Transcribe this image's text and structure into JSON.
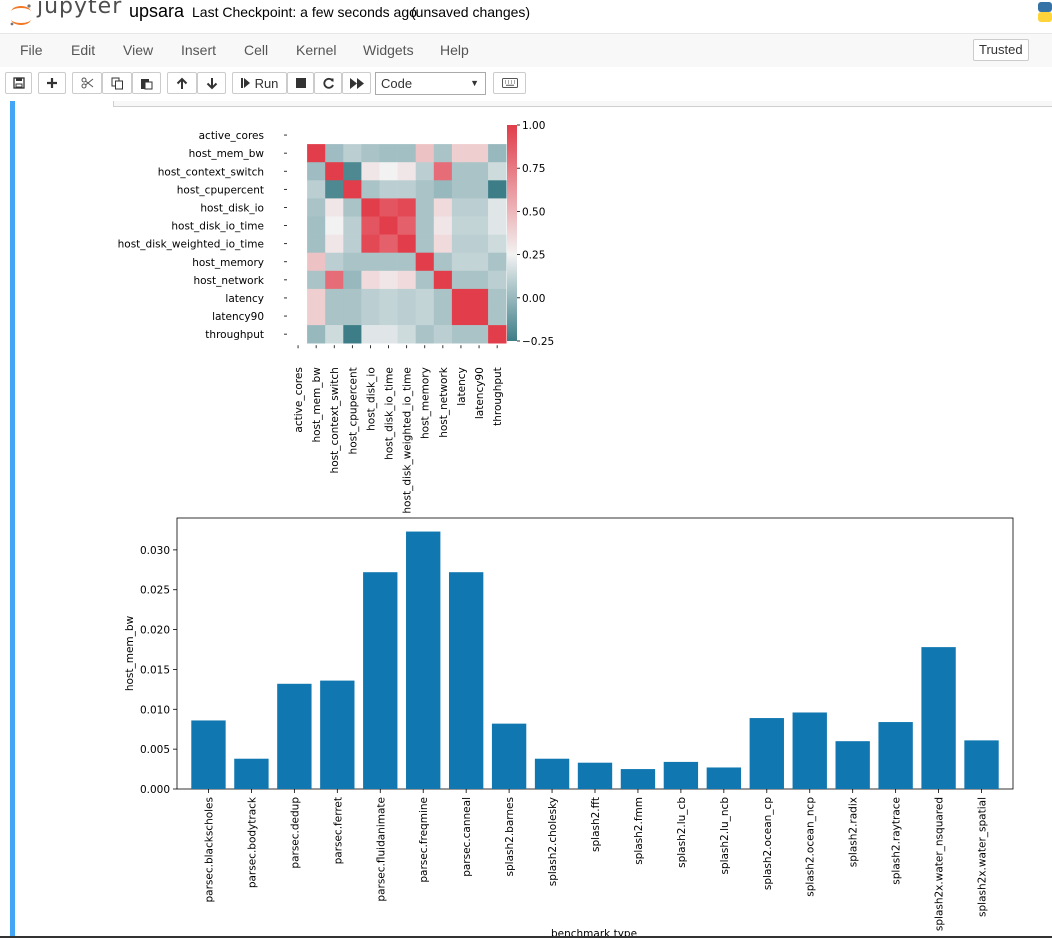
{
  "header": {
    "logo_text": "jupyter",
    "notebook_name": "upsara",
    "checkpoint": "Last Checkpoint: a few seconds ago",
    "status": "(unsaved changes)"
  },
  "menu": {
    "items": [
      "File",
      "Edit",
      "View",
      "Insert",
      "Cell",
      "Kernel",
      "Widgets",
      "Help"
    ],
    "trusted": "Trusted"
  },
  "toolbar": {
    "run_label": "Run",
    "cell_type": "Code"
  },
  "chart_data": [
    {
      "type": "heatmap",
      "rows": [
        "active_cores",
        "host_mem_bw",
        "host_context_switch",
        "host_cpupercent",
        "host_disk_io",
        "host_disk_io_time",
        "host_disk_weighted_io_time",
        "host_memory",
        "host_network",
        "latency",
        "latency90",
        "throughput"
      ],
      "columns": [
        "active_cores",
        "host_mem_bw",
        "host_context_switch",
        "host_cpupercent",
        "host_disk_io",
        "host_disk_io_time",
        "host_disk_weighted_io_time",
        "host_memory",
        "host_network",
        "latency",
        "latency90",
        "throughput"
      ],
      "values": [
        [
          null,
          null,
          null,
          null,
          null,
          null,
          null,
          null,
          null,
          null,
          null,
          null
        ],
        [
          null,
          1.0,
          0.02,
          0.1,
          0.05,
          0.03,
          0.03,
          0.45,
          0.05,
          0.4,
          0.4,
          0.0
        ],
        [
          null,
          0.02,
          1.0,
          -0.2,
          0.3,
          0.25,
          0.3,
          0.1,
          0.8,
          0.05,
          0.05,
          0.15
        ],
        [
          null,
          0.1,
          -0.2,
          1.0,
          0.05,
          0.1,
          0.1,
          0.05,
          0.0,
          0.05,
          0.05,
          -0.25
        ],
        [
          null,
          0.05,
          0.3,
          0.05,
          1.0,
          0.9,
          0.95,
          0.05,
          0.35,
          0.1,
          0.1,
          0.2
        ],
        [
          null,
          0.03,
          0.25,
          0.1,
          0.9,
          1.0,
          0.85,
          0.05,
          0.3,
          0.12,
          0.12,
          0.2
        ],
        [
          null,
          0.03,
          0.3,
          0.1,
          0.95,
          0.85,
          1.0,
          0.05,
          0.35,
          0.1,
          0.1,
          0.15
        ],
        [
          null,
          0.45,
          0.1,
          0.05,
          0.05,
          0.05,
          0.05,
          1.0,
          0.05,
          0.12,
          0.12,
          0.05
        ],
        [
          null,
          0.05,
          0.8,
          0.0,
          0.35,
          0.3,
          0.35,
          0.05,
          1.0,
          0.05,
          0.05,
          0.1
        ],
        [
          null,
          0.4,
          0.05,
          0.05,
          0.1,
          0.12,
          0.1,
          0.12,
          0.05,
          1.0,
          1.0,
          0.05
        ],
        [
          null,
          0.4,
          0.05,
          0.05,
          0.1,
          0.12,
          0.1,
          0.12,
          0.05,
          1.0,
          1.0,
          0.05
        ],
        [
          null,
          0.0,
          0.15,
          -0.25,
          0.2,
          0.2,
          0.15,
          0.05,
          0.1,
          0.05,
          0.05,
          1.0
        ]
      ],
      "colorbar": {
        "min": -0.25,
        "max": 1.0,
        "ticks": [
          1.0,
          0.75,
          0.5,
          0.25,
          0.0,
          -0.25
        ],
        "tick_labels": [
          "1.00",
          "0.75",
          "0.50",
          "0.25",
          "0.00",
          "−0.25"
        ]
      },
      "colors": {
        "low": "#3c7d87",
        "mid": "#f2f2f2",
        "high": "#e13d4a"
      }
    },
    {
      "type": "bar",
      "categories": [
        "parsec.blackscholes",
        "parsec.bodytrack",
        "parsec.dedup",
        "parsec.ferret",
        "parsec.fluidanimate",
        "parsec.freqmine",
        "parsec.canneal",
        "splash2.barnes",
        "splash2.cholesky",
        "splash2.fft",
        "splash2.fmm",
        "splash2.lu_cb",
        "splash2.lu_ncb",
        "splash2.ocean_cp",
        "splash2.ocean_ncp",
        "splash2.radix",
        "splash2.raytrace",
        "splash2x.water_nsquared",
        "splash2x.water_spatial"
      ],
      "values": [
        0.0086,
        0.0038,
        0.0132,
        0.0136,
        0.0272,
        0.0323,
        0.0272,
        0.0082,
        0.0038,
        0.0033,
        0.0025,
        0.0034,
        0.0027,
        0.0089,
        0.0096,
        0.006,
        0.0084,
        0.0178,
        0.0061
      ],
      "xlabel": "benchmark type",
      "ylabel": "host_mem_bw",
      "ylim": [
        0,
        0.034
      ],
      "yticks": [
        0.0,
        0.005,
        0.01,
        0.015,
        0.02,
        0.025,
        0.03
      ],
      "ytick_labels": [
        "0.000",
        "0.005",
        "0.010",
        "0.015",
        "0.020",
        "0.025",
        "0.030"
      ],
      "bar_color": "#1077b0"
    }
  ]
}
